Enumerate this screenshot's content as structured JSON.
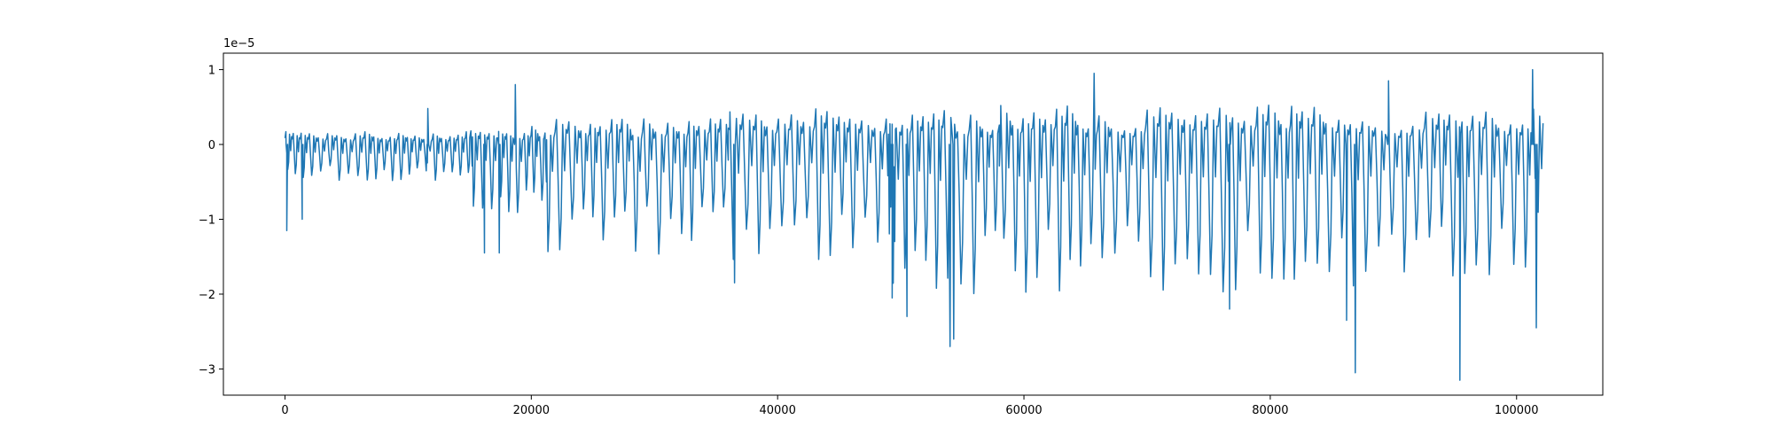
{
  "chart_data": {
    "type": "line",
    "title": "",
    "xlabel": "",
    "ylabel": "",
    "y_offset_label": "1e−5",
    "y_scale": 1e-05,
    "xlim": [
      -5000,
      107000
    ],
    "ylim": [
      -3.35,
      1.22
    ],
    "xticks": [
      {
        "value": 0,
        "label": "0"
      },
      {
        "value": 20000,
        "label": "20000"
      },
      {
        "value": 40000,
        "label": "40000"
      },
      {
        "value": 60000,
        "label": "60000"
      },
      {
        "value": 80000,
        "label": "80000"
      },
      {
        "value": 100000,
        "label": "100000"
      }
    ],
    "yticks": [
      {
        "value": 1,
        "label": "1"
      },
      {
        "value": 0,
        "label": "0"
      },
      {
        "value": -1,
        "label": "−1"
      },
      {
        "value": -2,
        "label": "−2"
      },
      {
        "value": -3,
        "label": "−3"
      }
    ],
    "grid": false,
    "legend": "none",
    "series": [
      {
        "color": "#1f77b4",
        "x_start": 0,
        "x_end": 102000,
        "segments": [
          {
            "x": [
              0,
              15000
            ],
            "period": 700,
            "high": 0.15,
            "low": -0.45
          },
          {
            "x": [
              15000,
              21000
            ],
            "period": 700,
            "high": 0.2,
            "low": -0.9
          },
          {
            "x": [
              21000,
              36000
            ],
            "period": 900,
            "high": 0.3,
            "low": -1.35
          },
          {
            "x": [
              36000,
              49000
            ],
            "period": 950,
            "high": 0.4,
            "low": -1.4
          },
          {
            "x": [
              49000,
              58000
            ],
            "period": 950,
            "high": 0.4,
            "low": -1.9
          },
          {
            "x": [
              58000,
              102000
            ],
            "period": 950,
            "high": 0.45,
            "low": -1.8
          }
        ],
        "extremes": [
          {
            "x": 150,
            "y": -1.15
          },
          {
            "x": 1400,
            "y": -1.0
          },
          {
            "x": 11600,
            "y": 0.48
          },
          {
            "x": 16200,
            "y": -1.45
          },
          {
            "x": 17400,
            "y": -1.45
          },
          {
            "x": 18700,
            "y": 0.8
          },
          {
            "x": 36500,
            "y": -1.85
          },
          {
            "x": 49300,
            "y": -2.05
          },
          {
            "x": 50500,
            "y": -2.3
          },
          {
            "x": 54000,
            "y": -2.7
          },
          {
            "x": 54300,
            "y": -2.6
          },
          {
            "x": 65700,
            "y": 0.95
          },
          {
            "x": 76700,
            "y": -2.2
          },
          {
            "x": 86200,
            "y": -2.35
          },
          {
            "x": 86900,
            "y": -3.05
          },
          {
            "x": 89600,
            "y": 0.85
          },
          {
            "x": 95400,
            "y": -3.15
          },
          {
            "x": 101300,
            "y": 1.0
          },
          {
            "x": 101600,
            "y": -2.45
          }
        ]
      }
    ]
  }
}
